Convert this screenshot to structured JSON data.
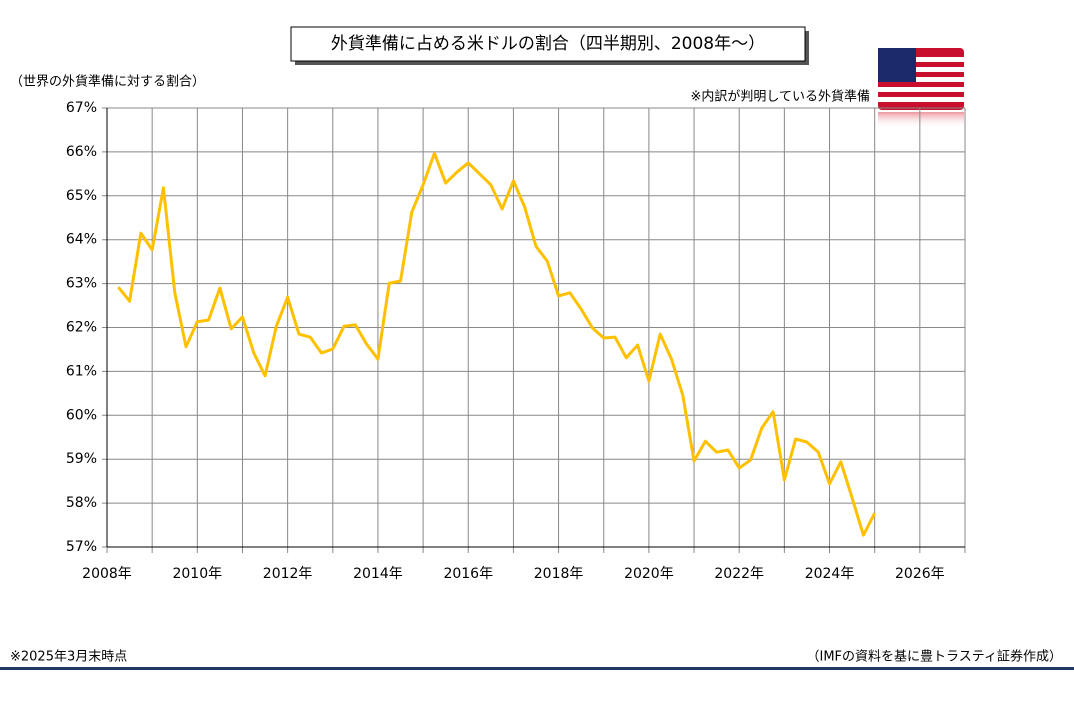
{
  "chart_data": {
    "type": "line",
    "title": "外貨準備に占める米ドルの割合（四半期別、2008年～）",
    "y_label": "（世界の外貨準備に対する割合）",
    "note": "※内訳が判明している外貨準備",
    "footnote": "※2025年3月末時点",
    "source": "（IMFの資料を基に豊トラスティ証券作成）",
    "xlim": [
      2008,
      2027
    ],
    "xticks": [
      {
        "value": 2008,
        "label": "2008年"
      },
      {
        "value": 2010,
        "label": "2010年"
      },
      {
        "value": 2012,
        "label": "2012年"
      },
      {
        "value": 2014,
        "label": "2014年"
      },
      {
        "value": 2016,
        "label": "2016年"
      },
      {
        "value": 2018,
        "label": "2018年"
      },
      {
        "value": 2020,
        "label": "2020年"
      },
      {
        "value": 2022,
        "label": "2022年"
      },
      {
        "value": 2024,
        "label": "2024年"
      },
      {
        "value": 2026,
        "label": "2026年"
      }
    ],
    "x_minor_ticks": [
      2009,
      2011,
      2013,
      2015,
      2017,
      2019,
      2021,
      2023,
      2025,
      2027
    ],
    "ylim": [
      57,
      67
    ],
    "yticks": [
      {
        "value": 57,
        "label": "57%"
      },
      {
        "value": 58,
        "label": "58%"
      },
      {
        "value": 59,
        "label": "59%"
      },
      {
        "value": 60,
        "label": "60%"
      },
      {
        "value": 61,
        "label": "61%"
      },
      {
        "value": 62,
        "label": "62%"
      },
      {
        "value": 63,
        "label": "63%"
      },
      {
        "value": 64,
        "label": "64%"
      },
      {
        "value": 65,
        "label": "65%"
      },
      {
        "value": 66,
        "label": "66%"
      },
      {
        "value": 67,
        "label": "67%"
      }
    ],
    "grid": true,
    "series": [
      {
        "color": "#ffc000",
        "x": [
          2008.25,
          2008.5,
          2008.75,
          2009,
          2009.25,
          2009.5,
          2009.75,
          2010,
          2010.25,
          2010.5,
          2010.75,
          2011,
          2011.25,
          2011.5,
          2011.75,
          2012,
          2012.25,
          2012.5,
          2012.75,
          2013,
          2013.25,
          2013.5,
          2013.75,
          2014,
          2014.25,
          2014.5,
          2014.75,
          2015,
          2015.25,
          2015.5,
          2015.75,
          2016,
          2016.25,
          2016.5,
          2016.75,
          2017,
          2017.25,
          2017.5,
          2017.75,
          2018,
          2018.25,
          2018.5,
          2018.75,
          2019,
          2019.25,
          2019.5,
          2019.75,
          2020,
          2020.25,
          2020.5,
          2020.75,
          2021,
          2021.25,
          2021.5,
          2021.75,
          2022,
          2022.25,
          2022.5,
          2022.75,
          2023,
          2023.25,
          2023.5,
          2023.75,
          2024,
          2024.25,
          2024.5,
          2024.75,
          2025
        ],
        "values": [
          62.92,
          62.6,
          64.15,
          63.77,
          65.18,
          62.8,
          61.56,
          62.13,
          62.17,
          62.9,
          61.97,
          62.24,
          61.42,
          60.9,
          62.03,
          62.69,
          61.85,
          61.78,
          61.42,
          61.51,
          62.03,
          62.06,
          61.62,
          61.28,
          63.01,
          63.06,
          64.63,
          65.25,
          65.97,
          65.29,
          65.54,
          65.75,
          65.5,
          65.25,
          64.7,
          65.34,
          64.74,
          63.85,
          63.51,
          62.72,
          62.79,
          62.42,
          61.99,
          61.76,
          61.78,
          61.31,
          61.6,
          60.78,
          61.85,
          61.28,
          60.46,
          58.96,
          59.41,
          59.16,
          59.21,
          58.8,
          58.98,
          59.71,
          60.08,
          58.53,
          59.46,
          59.39,
          59.16,
          58.44,
          58.94,
          58.12,
          57.27,
          57.77
        ]
      }
    ]
  }
}
